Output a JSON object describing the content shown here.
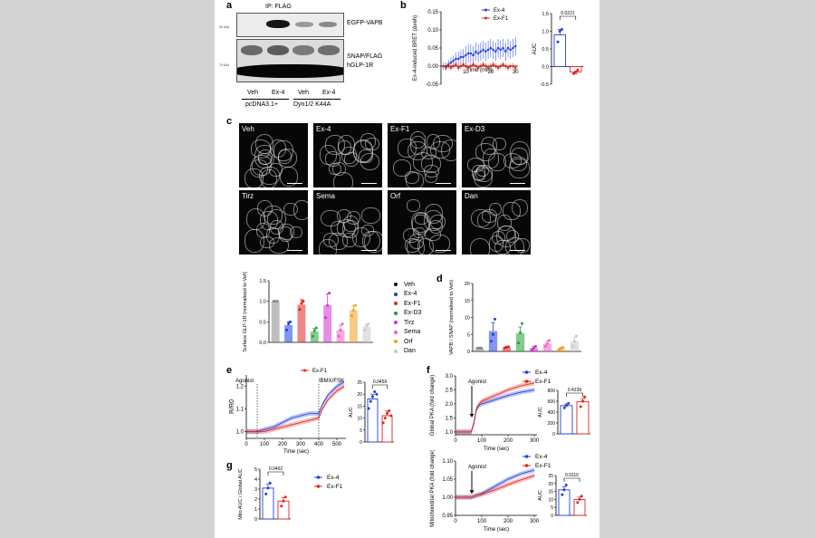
{
  "panels": {
    "a": "a",
    "b": "b",
    "c": "c",
    "d": "d",
    "e": "e",
    "f": "f",
    "g": "g"
  },
  "blot": {
    "ip_label": "IP: FLAG",
    "band_top_label": "EGFP-VAPB",
    "band_bottom_label_1": "SNAP/FLAG",
    "band_bottom_label_2": "hGLP-1R",
    "mw_top": "50 kDa",
    "mw_bottom": "75 kDa",
    "lanes": [
      "Veh",
      "Ex-4",
      "Veh",
      "Ex-4"
    ],
    "group_1": "pcDNA3.1+",
    "group_2": "Dyn1/2 K44A"
  },
  "micrographs": [
    "Veh",
    "Ex-4",
    "Ex-F1",
    "Ex-D3",
    "Tirz",
    "Sema",
    "Orf",
    "Dan"
  ],
  "legend_c": {
    "items": [
      {
        "label": "Veh",
        "color": "#111111"
      },
      {
        "label": "Ex-4",
        "color": "#1f3ee0"
      },
      {
        "label": "Ex-F1",
        "color": "#e0241f"
      },
      {
        "label": "Ex-D3",
        "color": "#1fa02e"
      },
      {
        "label": "Tirz",
        "color": "#d12fd1"
      },
      {
        "label": "Sema",
        "color": "#f060c8"
      },
      {
        "label": "Orf",
        "color": "#f0a020"
      },
      {
        "label": "Dan",
        "color": "#c8c8c8"
      }
    ]
  },
  "chart_data": [
    {
      "id": "b-time",
      "type": "line",
      "xlabel": "Time (min)",
      "ylabel": "Ex-4-induced BRET (Δveh)",
      "xticks": [
        10,
        20,
        30
      ],
      "yticks": [
        -0.05,
        0.0,
        0.05,
        0.1,
        0.15
      ],
      "ytick_labels": [
        "-0.05",
        "0.00",
        "0.05",
        "0.10",
        "0.15"
      ],
      "xlim": [
        0,
        31
      ],
      "ylim": [
        -0.05,
        0.15
      ],
      "series": [
        {
          "name": "Ex-4",
          "color": "#1f3ee0",
          "x": [
            1,
            2,
            3,
            4,
            5,
            6,
            7,
            8,
            9,
            10,
            11,
            12,
            13,
            14,
            15,
            16,
            17,
            18,
            19,
            20,
            21,
            22,
            23,
            24,
            25,
            26,
            27,
            28,
            29,
            30
          ],
          "y": [
            0.0,
            0.0,
            0.005,
            0.01,
            0.015,
            0.02,
            0.02,
            0.025,
            0.025,
            0.03,
            0.035,
            0.035,
            0.03,
            0.04,
            0.035,
            0.04,
            0.045,
            0.04,
            0.045,
            0.05,
            0.045,
            0.04,
            0.05,
            0.045,
            0.05,
            0.04,
            0.05,
            0.045,
            0.05,
            0.055
          ],
          "err": [
            0.01,
            0.01,
            0.012,
            0.015,
            0.015,
            0.018,
            0.02,
            0.02,
            0.022,
            0.025,
            0.025,
            0.025,
            0.025,
            0.025,
            0.025,
            0.025,
            0.025,
            0.025,
            0.025,
            0.025,
            0.025,
            0.025,
            0.025,
            0.025,
            0.025,
            0.025,
            0.025,
            0.025,
            0.025,
            0.025
          ]
        },
        {
          "name": "Ex-F1",
          "color": "#e0241f",
          "x": [
            1,
            2,
            3,
            4,
            5,
            6,
            7,
            8,
            9,
            10,
            11,
            12,
            13,
            14,
            15,
            16,
            17,
            18,
            19,
            20,
            21,
            22,
            23,
            24,
            25,
            26,
            27,
            28,
            29,
            30
          ],
          "y": [
            0.0,
            -0.005,
            0.0,
            -0.005,
            0.0,
            0.005,
            -0.005,
            0.0,
            0.005,
            0.0,
            -0.005,
            0.0,
            0.005,
            0.0,
            -0.005,
            0.0,
            0.005,
            0.0,
            -0.005,
            0.0,
            0.005,
            0.0,
            -0.005,
            0.0,
            0.005,
            0.0,
            -0.005,
            0.0,
            0.0,
            -0.005
          ],
          "err": [
            0.008,
            0.008,
            0.008,
            0.008,
            0.008,
            0.008,
            0.008,
            0.008,
            0.008,
            0.008,
            0.008,
            0.008,
            0.008,
            0.008,
            0.008,
            0.008,
            0.008,
            0.008,
            0.008,
            0.008,
            0.008,
            0.008,
            0.008,
            0.008,
            0.008,
            0.008,
            0.008,
            0.008,
            0.008,
            0.008
          ]
        }
      ]
    },
    {
      "id": "b-auc",
      "type": "bar",
      "ylabel": "AUC",
      "yticks": [
        -0.5,
        0.0,
        0.5,
        1.0,
        1.5
      ],
      "ytick_labels": [
        "-0.5",
        "0.0",
        "0.5",
        "1.0",
        "1.5"
      ],
      "ylim": [
        -0.5,
        1.5
      ],
      "p_value": "0.0221",
      "series": [
        {
          "name": "Ex-4",
          "color": "#1f3ee0",
          "value": 0.9,
          "err": 0.15,
          "points": [
            0.7,
            1.0,
            1.05
          ]
        },
        {
          "name": "Ex-F1",
          "color": "#e0241f",
          "value": -0.15,
          "err": 0.05,
          "points": [
            -0.2,
            -0.15,
            -0.1
          ]
        }
      ]
    },
    {
      "id": "c-surface",
      "type": "bar",
      "ylabel": "Surface GLP-1R (normalised to Veh)",
      "yticks": [
        0.0,
        0.5,
        1.0,
        1.5
      ],
      "ytick_labels": [
        "0.0",
        "0.5",
        "1.0",
        "1.5"
      ],
      "ylim": [
        0,
        1.5
      ],
      "categories": [
        "Veh",
        "Ex-4",
        "Ex-F1",
        "Ex-D3",
        "Tirz",
        "Sema",
        "Orf",
        "Dan"
      ],
      "values": [
        1.0,
        0.42,
        0.92,
        0.26,
        0.9,
        0.3,
        0.78,
        0.38
      ],
      "errors": [
        0.0,
        0.08,
        0.12,
        0.08,
        0.28,
        0.12,
        0.12,
        0.06
      ],
      "points": [
        [
          1,
          1,
          1
        ],
        [
          0.3,
          0.45,
          0.5
        ],
        [
          0.8,
          0.95,
          1.0
        ],
        [
          0.15,
          0.28,
          0.35
        ],
        [
          0.6,
          0.9,
          1.2
        ],
        [
          0.15,
          0.3,
          0.45
        ],
        [
          0.65,
          0.78,
          0.9
        ],
        [
          0.3,
          0.4,
          0.45
        ]
      ],
      "colors": [
        "#888888",
        "#1f3ee0",
        "#e0241f",
        "#1fa02e",
        "#d12fd1",
        "#f060c8",
        "#f0a020",
        "#c8c8c8"
      ]
    },
    {
      "id": "d-vapb",
      "type": "bar",
      "ylabel": "VAPB / SNAP (normalised to Veh)",
      "yticks": [
        0,
        5,
        10,
        15,
        20
      ],
      "ytick_labels": [
        "0",
        "5",
        "10",
        "15",
        "20"
      ],
      "ylim": [
        0,
        20
      ],
      "categories": [
        "Veh",
        "Ex-4",
        "Ex-F1",
        "Ex-D3",
        "Tirz",
        "Sema",
        "Orf",
        "Dan"
      ],
      "values": [
        1.0,
        6.0,
        1.2,
        5.4,
        1.0,
        2.3,
        0.9,
        3.0
      ],
      "errors": [
        0.0,
        2.5,
        0.3,
        1.8,
        0.5,
        0.8,
        0.3,
        1.2
      ],
      "points": [
        [
          1,
          1,
          1
        ],
        [
          3,
          5,
          9.5
        ],
        [
          1,
          1.2,
          1.4
        ],
        [
          2.5,
          5.5,
          8.2
        ],
        [
          0.5,
          1,
          1.5
        ],
        [
          1.5,
          2.3,
          3.2
        ],
        [
          0.6,
          0.9,
          1.2
        ],
        [
          1.5,
          3,
          4.5
        ]
      ],
      "colors": [
        "#888888",
        "#1f3ee0",
        "#e0241f",
        "#1fa02e",
        "#d12fd1",
        "#f060c8",
        "#f0a020",
        "#c8c8c8"
      ]
    },
    {
      "id": "e-time",
      "type": "line",
      "xlabel": "Time (sec)",
      "ylabel": "R/R0",
      "annotations": [
        "Agonist",
        "IBMX/FSK"
      ],
      "xticks": [
        0,
        100,
        200,
        300,
        400,
        500
      ],
      "yticks": [
        1.0,
        1.1,
        1.2
      ],
      "ytick_labels": [
        "1.0",
        "1.1",
        "1.2"
      ],
      "xlim": [
        0,
        550
      ],
      "ylim": [
        0.97,
        1.25
      ],
      "series": [
        {
          "name": "Ex-4",
          "color": "#1f3ee0",
          "x": [
            0,
            60,
            100,
            150,
            200,
            250,
            300,
            350,
            400,
            420,
            450,
            500,
            540
          ],
          "y": [
            1.0,
            1.0,
            1.01,
            1.02,
            1.04,
            1.06,
            1.07,
            1.08,
            1.08,
            1.12,
            1.16,
            1.2,
            1.22
          ]
        },
        {
          "name": "Ex-F1",
          "color": "#e0241f",
          "x": [
            0,
            60,
            100,
            150,
            200,
            250,
            300,
            350,
            400,
            420,
            450,
            500,
            540
          ],
          "y": [
            1.0,
            1.0,
            1.0,
            1.01,
            1.02,
            1.03,
            1.04,
            1.05,
            1.06,
            1.1,
            1.14,
            1.18,
            1.2
          ]
        }
      ]
    },
    {
      "id": "e-auc",
      "type": "bar",
      "ylabel": "AUC",
      "yticks": [
        0,
        5,
        10,
        15,
        20,
        25
      ],
      "ytick_labels": [
        "0",
        "5",
        "10",
        "15",
        "20",
        "25"
      ],
      "ylim": [
        0,
        25
      ],
      "p_value": "0.0459",
      "series": [
        {
          "name": "Ex-4",
          "color": "#1f3ee0",
          "value": 18,
          "err": 2,
          "points": [
            14,
            17,
            19,
            21,
            20
          ]
        },
        {
          "name": "Ex-F1",
          "color": "#e0241f",
          "value": 11,
          "err": 2,
          "points": [
            8,
            10,
            12,
            13,
            11
          ]
        }
      ]
    },
    {
      "id": "f-global",
      "type": "line",
      "xlabel": "Time (sec)",
      "ylabel": "Global PKA (fold change)",
      "annotations": [
        "Agonist"
      ],
      "xticks": [
        0,
        100,
        200,
        300
      ],
      "yticks": [
        1.0,
        1.5,
        2.0,
        2.5,
        3.0
      ],
      "ytick_labels": [
        "1.0",
        "1.5",
        "2.0",
        "2.5",
        "3.0"
      ],
      "xlim": [
        0,
        310
      ],
      "ylim": [
        0.9,
        3.0
      ],
      "series": [
        {
          "name": "Ex-4",
          "color": "#1f3ee0",
          "x": [
            0,
            60,
            70,
            80,
            90,
            100,
            150,
            200,
            250,
            300
          ],
          "y": [
            1.0,
            1.0,
            1.3,
            1.8,
            1.95,
            2.0,
            2.15,
            2.3,
            2.42,
            2.5
          ]
        },
        {
          "name": "Ex-F1",
          "color": "#e0241f",
          "x": [
            0,
            60,
            70,
            80,
            90,
            100,
            150,
            200,
            250,
            300
          ],
          "y": [
            1.0,
            1.0,
            1.35,
            1.85,
            2.0,
            2.1,
            2.3,
            2.5,
            2.65,
            2.75
          ]
        }
      ]
    },
    {
      "id": "f-global-auc",
      "type": "bar",
      "ylabel": "AUC",
      "yticks": [
        0,
        200,
        400,
        600,
        800
      ],
      "ytick_labels": [
        "0",
        "200",
        "400",
        "600",
        "800"
      ],
      "ylim": [
        0,
        800
      ],
      "p_value": "0.4239",
      "series": [
        {
          "name": "Ex-4",
          "color": "#1f3ee0",
          "value": 520,
          "err": 30,
          "points": [
            480,
            520,
            560
          ]
        },
        {
          "name": "Ex-F1",
          "color": "#e0241f",
          "value": 590,
          "err": 60,
          "points": [
            500,
            600,
            680
          ]
        }
      ]
    },
    {
      "id": "f-mito",
      "type": "line",
      "xlabel": "Time (sec)",
      "ylabel": "Mitochondrial PKA (fold change)",
      "annotations": [
        "Agonist"
      ],
      "xticks": [
        0,
        100,
        200,
        300
      ],
      "yticks": [
        0.95,
        1.0,
        1.05,
        1.1
      ],
      "ytick_labels": [
        "0.95",
        "1.00",
        "1.05",
        "1.10"
      ],
      "xlim": [
        0,
        310
      ],
      "ylim": [
        0.95,
        1.1
      ],
      "series": [
        {
          "name": "Ex-4",
          "color": "#1f3ee0",
          "x": [
            0,
            60,
            80,
            100,
            150,
            200,
            250,
            300
          ],
          "y": [
            1.0,
            1.0,
            1.005,
            1.01,
            1.03,
            1.05,
            1.065,
            1.075
          ]
        },
        {
          "name": "Ex-F1",
          "color": "#e0241f",
          "x": [
            0,
            60,
            80,
            100,
            150,
            200,
            250,
            300
          ],
          "y": [
            1.0,
            1.0,
            1.005,
            1.008,
            1.02,
            1.035,
            1.048,
            1.06
          ]
        }
      ]
    },
    {
      "id": "f-mito-auc",
      "type": "bar",
      "ylabel": "AUC",
      "yticks": [
        0,
        5,
        10,
        15,
        20,
        25
      ],
      "ytick_labels": [
        "0",
        "5",
        "10",
        "15",
        "20",
        "25"
      ],
      "ylim": [
        0,
        25
      ],
      "p_value": "0.0110",
      "series": [
        {
          "name": "Ex-4",
          "color": "#1f3ee0",
          "value": 16,
          "err": 2,
          "points": [
            13,
            16,
            19
          ]
        },
        {
          "name": "Ex-F1",
          "color": "#e0241f",
          "value": 10,
          "err": 1.5,
          "points": [
            8,
            10,
            12
          ]
        }
      ]
    },
    {
      "id": "g-ratio",
      "type": "bar",
      "ylabel": "Mito AUC / Global AUC",
      "yticks": [
        0,
        1,
        2,
        3,
        4,
        5
      ],
      "ytick_labels": [
        "0",
        "1",
        "2",
        "3",
        "4",
        "5"
      ],
      "ylim": [
        0,
        5
      ],
      "p_value": "0.0462",
      "series": [
        {
          "name": "Ex-4",
          "color": "#1f3ee0",
          "value": 3.1,
          "err": 0.4,
          "points": [
            2.5,
            3.1,
            3.6
          ]
        },
        {
          "name": "Ex-F1",
          "color": "#e0241f",
          "value": 1.8,
          "err": 0.35,
          "points": [
            1.3,
            1.8,
            2.2
          ]
        }
      ]
    }
  ]
}
